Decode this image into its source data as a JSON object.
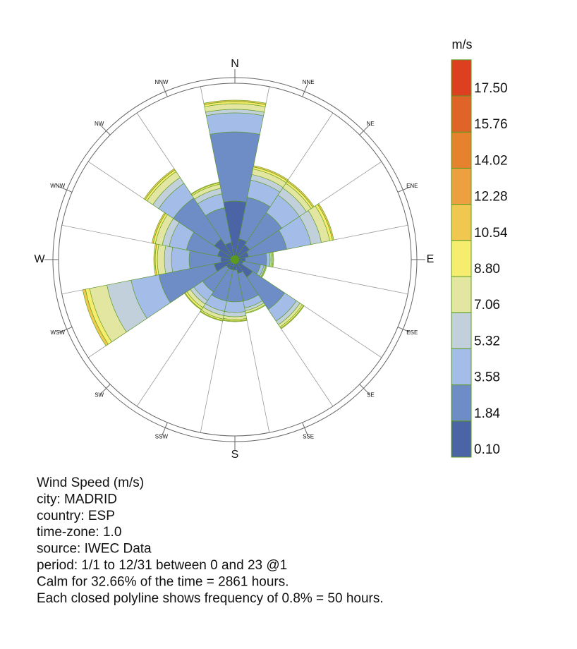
{
  "chart_data": {
    "type": "wind_rose",
    "categories": [
      "N",
      "NNE",
      "NE",
      "ENE",
      "E",
      "ESE",
      "SE",
      "SSE",
      "S",
      "SSW",
      "SW",
      "WSW",
      "W",
      "WNW",
      "NW",
      "NNW"
    ],
    "rlim": [
      0,
      500
    ],
    "legend_title": "m/s",
    "calm_color": "#5a9a20",
    "series": [
      {
        "name": "0.10",
        "color": "#4a64a6",
        "values": [
          166,
          60,
          50,
          40,
          30,
          24,
          60,
          40,
          30,
          30,
          30,
          60,
          40,
          50,
          70,
          50
        ]
      },
      {
        "name": "1.84",
        "color": "#6e8cc6",
        "values": [
          196,
          120,
          110,
          110,
          60,
          50,
          110,
          80,
          90,
          90,
          80,
          160,
          90,
          90,
          140,
          100
        ]
      },
      {
        "name": "3.58",
        "color": "#a3bce8",
        "values": [
          54,
          50,
          60,
          70,
          10,
          10,
          40,
          20,
          30,
          30,
          30,
          80,
          50,
          50,
          50,
          40
        ]
      },
      {
        "name": "5.32",
        "color": "#c2d0dc",
        "values": [
          10,
          16,
          24,
          30,
          4,
          4,
          12,
          8,
          12,
          12,
          12,
          70,
          20,
          20,
          20,
          16
        ]
      },
      {
        "name": "7.06",
        "color": "#e2e6a0",
        "values": [
          16,
          16,
          16,
          24,
          4,
          2,
          8,
          6,
          8,
          10,
          12,
          50,
          20,
          20,
          20,
          12
        ]
      },
      {
        "name": "8.80",
        "color": "#f6ec6e",
        "values": [
          6,
          6,
          6,
          8,
          2,
          2,
          4,
          2,
          4,
          4,
          6,
          12,
          6,
          6,
          6,
          4
        ]
      },
      {
        "name": "10.54",
        "color": "#f0c850",
        "values": [
          4,
          4,
          4,
          4,
          0,
          0,
          2,
          0,
          2,
          2,
          2,
          8,
          4,
          4,
          4,
          2
        ]
      },
      {
        "name": "12.28",
        "color": "#eca040",
        "values": [
          0,
          0,
          0,
          0,
          0,
          0,
          0,
          0,
          0,
          0,
          0,
          0,
          0,
          0,
          0,
          0
        ]
      },
      {
        "name": "14.02",
        "color": "#e6822e",
        "values": [
          0,
          0,
          0,
          0,
          0,
          0,
          0,
          0,
          0,
          0,
          0,
          0,
          0,
          0,
          0,
          0
        ]
      },
      {
        "name": "15.76",
        "color": "#e06428",
        "values": [
          0,
          0,
          0,
          0,
          0,
          0,
          0,
          0,
          0,
          0,
          0,
          0,
          0,
          0,
          0,
          0
        ]
      },
      {
        "name": "17.50",
        "color": "#dc4020",
        "values": [
          0,
          0,
          0,
          0,
          0,
          0,
          0,
          0,
          0,
          0,
          0,
          0,
          0,
          0,
          0,
          0
        ]
      }
    ],
    "notes": [
      "Wind Speed (m/s)",
      "city: MADRID",
      "country: ESP",
      "time-zone: 1.0",
      "source: IWEC Data",
      "period: 1/1 to 12/31 between 0 and 23 @1",
      "Calm for 32.66% of the time = 2861 hours.",
      "Each closed polyline shows frequency of 0.8% = 50 hours."
    ]
  }
}
